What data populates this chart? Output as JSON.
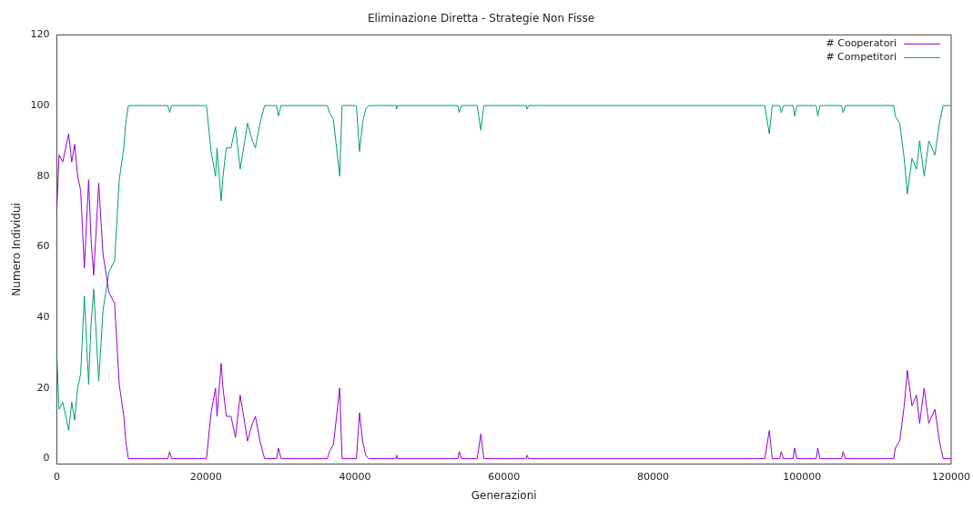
{
  "chart_data": {
    "type": "line",
    "title": "Eliminazione Diretta - Strategie Non Fisse",
    "xlabel": "Generazioni",
    "ylabel": "Numero Individui",
    "x": [
      0,
      300,
      800,
      1200,
      1600,
      2000,
      2400,
      2800,
      3200,
      3700,
      4270,
      4600,
      4950,
      5630,
      6200,
      7000,
      7760,
      8380,
      9000,
      9250,
      9600,
      14900,
      15150,
      15400,
      20080,
      20700,
      21300,
      21500,
      22050,
      22300,
      22750,
      23370,
      23980,
      24600,
      25220,
      25600,
      26240,
      26650,
      27260,
      27880,
      29500,
      29730,
      30100,
      36300,
      36600,
      37120,
      37950,
      38280,
      40200,
      40620,
      41030,
      41440,
      41850,
      45500,
      45600,
      45700,
      53800,
      54000,
      54300,
      56400,
      56900,
      57300,
      63000,
      63100,
      63300,
      95000,
      95600,
      96000,
      97000,
      97200,
      97500,
      98800,
      99000,
      99300,
      101900,
      102100,
      102400,
      105300,
      105500,
      105800,
      112300,
      112500,
      113100,
      113700,
      114120,
      114740,
      115350,
      115770,
      116380,
      117000,
      117820,
      118430,
      118930,
      120000
    ],
    "series": [
      {
        "name": "# Cooperatori",
        "color": "#9400d3",
        "values": [
          70,
          86,
          84,
          88,
          92,
          84,
          89,
          80,
          76,
          54,
          79,
          62,
          52,
          78,
          58,
          47,
          44,
          21,
          12,
          5,
          0,
          0,
          2,
          0,
          0,
          13,
          20,
          12,
          27,
          20,
          12,
          12,
          6,
          18,
          10,
          5,
          10,
          12,
          5,
          0,
          0,
          3,
          0,
          0,
          2,
          4,
          20,
          0,
          0,
          13,
          5,
          1,
          0,
          0,
          1,
          0,
          0,
          2,
          0,
          0,
          7,
          0,
          0,
          1,
          0,
          0,
          8,
          0,
          0,
          2,
          0,
          0,
          3,
          0,
          0,
          3,
          0,
          0,
          2,
          0,
          0,
          3,
          5,
          15,
          25,
          15,
          18,
          10,
          20,
          10,
          14,
          5,
          0,
          0
        ]
      },
      {
        "name": "# Competitori",
        "color": "#009e73",
        "values": [
          30,
          14,
          16,
          12,
          8,
          16,
          11,
          20,
          24,
          46,
          21,
          38,
          48,
          22,
          42,
          53,
          56,
          79,
          88,
          95,
          100,
          100,
          98,
          100,
          100,
          87,
          80,
          88,
          73,
          80,
          88,
          88,
          94,
          82,
          90,
          95,
          90,
          88,
          95,
          100,
          100,
          97,
          100,
          100,
          98,
          96,
          80,
          100,
          100,
          87,
          95,
          99,
          100,
          100,
          99,
          100,
          100,
          98,
          100,
          100,
          93,
          100,
          100,
          99,
          100,
          100,
          92,
          100,
          100,
          98,
          100,
          100,
          97,
          100,
          100,
          97,
          100,
          100,
          98,
          100,
          100,
          97,
          95,
          85,
          75,
          85,
          82,
          90,
          80,
          90,
          86,
          95,
          100,
          100
        ]
      }
    ],
    "xlim": [
      0,
      120000
    ],
    "xticks": [
      0,
      20000,
      40000,
      60000,
      80000,
      100000,
      120000
    ],
    "ylim": [
      -1.5,
      120
    ],
    "yticks": [
      0,
      20,
      40,
      60,
      80,
      100,
      120
    ],
    "grid": false,
    "legend": "top right",
    "marker": "none",
    "line_style": "solid"
  }
}
